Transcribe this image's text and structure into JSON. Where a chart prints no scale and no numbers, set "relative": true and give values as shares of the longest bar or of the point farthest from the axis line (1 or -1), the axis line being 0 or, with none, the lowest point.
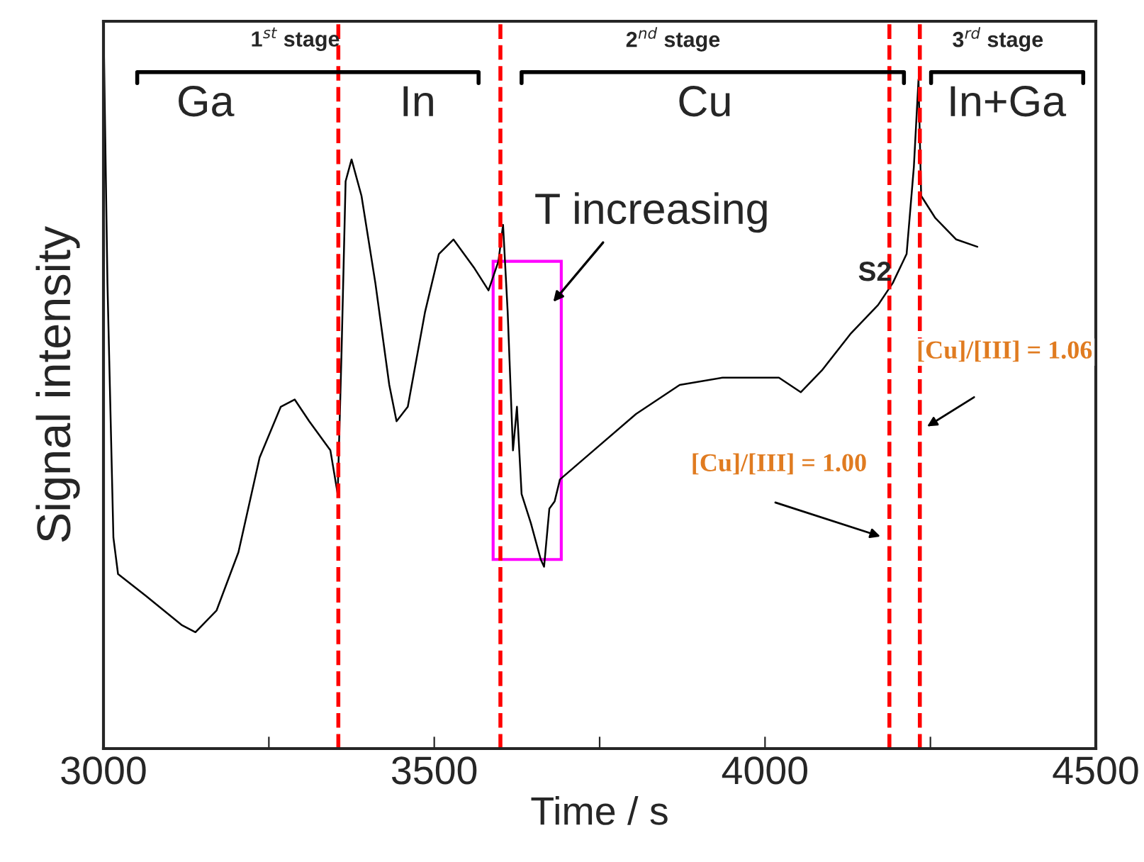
{
  "chart_data": {
    "type": "line",
    "relative": true,
    "xlabel": "Time / s",
    "ylabel": "Signal intensity",
    "xlim": [
      3000,
      4500
    ],
    "xticks": [
      3000,
      {
        "value": 3250,
        "label": null
      },
      3500,
      {
        "value": 3750,
        "label": null
      },
      4000,
      {
        "value": 4250,
        "label": null
      },
      4500
    ],
    "tick_labels": "x",
    "grid": false,
    "marker": "none",
    "line_style": "solid",
    "series": [
      {
        "color": "#000000",
        "x": [
          3000,
          3006,
          3015,
          3022,
          3064,
          3118,
          3139,
          3171,
          3204,
          3236,
          3268,
          3289,
          3311,
          3343,
          3354,
          3360,
          3366,
          3375,
          3390,
          3411,
          3432,
          3443,
          3460,
          3486,
          3507,
          3529,
          3561,
          3582,
          3597,
          3604,
          3611,
          3619,
          3625,
          3632,
          3646,
          3661,
          3666,
          3674,
          3682,
          3690,
          3741,
          3805,
          3871,
          3936,
          4021,
          4054,
          4086,
          4129,
          4171,
          4193,
          4214,
          4225,
          4232,
          4236,
          4257,
          4289,
          4321
        ],
        "values": [
          1.0,
          0.64,
          0.29,
          0.24,
          0.21,
          0.17,
          0.16,
          0.19,
          0.27,
          0.4,
          0.47,
          0.48,
          0.45,
          0.41,
          0.35,
          0.55,
          0.78,
          0.81,
          0.76,
          0.64,
          0.5,
          0.45,
          0.47,
          0.6,
          0.68,
          0.7,
          0.66,
          0.63,
          0.67,
          0.72,
          0.6,
          0.41,
          0.47,
          0.35,
          0.31,
          0.26,
          0.25,
          0.33,
          0.34,
          0.37,
          0.41,
          0.46,
          0.5,
          0.51,
          0.51,
          0.49,
          0.52,
          0.57,
          0.61,
          0.64,
          0.68,
          0.8,
          0.92,
          0.76,
          0.73,
          0.7,
          0.69
        ]
      }
    ],
    "ref_lines": [
      {
        "axis": "x",
        "value": 3355,
        "color": "#ff0000",
        "line_style": "dashed"
      },
      {
        "axis": "x",
        "value": 3600,
        "color": "#ff0000",
        "line_style": "dashed"
      },
      {
        "axis": "x",
        "value": 4188,
        "color": "#ff0000",
        "line_style": "dashed"
      },
      {
        "axis": "x",
        "value": 4234,
        "color": "#ff0000",
        "line_style": "dashed"
      }
    ],
    "annotations": [
      "1$^{st}$ stage",
      "2$^{nd}$ stage",
      "3$^{rd}$ stage",
      "Ga",
      "In",
      "Cu",
      "In+Ga",
      "T increasing",
      "S2",
      "[Cu]/[III] = 1.00",
      "[Cu]/[III] = 1.06"
    ]
  }
}
